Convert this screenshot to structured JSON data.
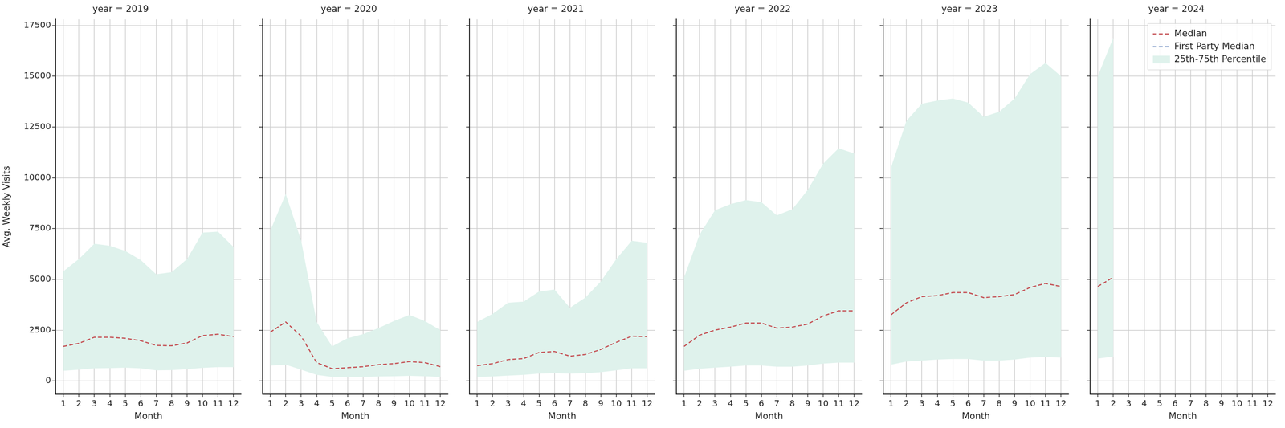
{
  "chart_data": [
    {
      "type": "line",
      "title": "year = 2019",
      "x_label": "Month",
      "y_label": "Avg. Weekly Visits",
      "x": [
        1,
        2,
        3,
        4,
        5,
        6,
        7,
        8,
        9,
        10,
        11,
        12
      ],
      "series": [
        {
          "name": "Median",
          "color": "#c44e52",
          "type": "line",
          "line_style": "dashed",
          "values": [
            1700,
            1850,
            2150,
            2150,
            2100,
            1980,
            1750,
            1730,
            1870,
            2230,
            2300,
            2180
          ]
        },
        {
          "name": "First Party Median",
          "color": "#4c72b0",
          "type": "line",
          "line_style": "dashed",
          "values": [
            null,
            null,
            null,
            null,
            null,
            null,
            null,
            null,
            null,
            null,
            null,
            null
          ]
        },
        {
          "name": "25th-75th Percentile",
          "color": "#dff2ec",
          "type": "area",
          "lower": [
            500,
            550,
            620,
            630,
            650,
            620,
            520,
            530,
            580,
            640,
            680,
            680
          ],
          "upper": [
            5400,
            6000,
            6750,
            6650,
            6400,
            5950,
            5250,
            5350,
            6000,
            7300,
            7350,
            6600
          ]
        }
      ],
      "xlim": [
        0.5,
        12.5
      ],
      "xticks": [
        1,
        2,
        3,
        4,
        5,
        6,
        7,
        8,
        9,
        10,
        11,
        12
      ],
      "ylim": [
        -650,
        17800
      ],
      "yticks": [
        0,
        2500,
        5000,
        7500,
        10000,
        12500,
        15000,
        17500
      ],
      "grid": true
    },
    {
      "type": "line",
      "title": "year = 2020",
      "x_label": "Month",
      "x": [
        1,
        2,
        3,
        4,
        5,
        6,
        7,
        8,
        9,
        10,
        11,
        12
      ],
      "series": [
        {
          "name": "Median",
          "color": "#c44e52",
          "type": "line",
          "line_style": "dashed",
          "values": [
            2400,
            2900,
            2200,
            900,
            600,
            650,
            700,
            800,
            850,
            950,
            900,
            700
          ]
        },
        {
          "name": "First Party Median",
          "color": "#4c72b0",
          "type": "line",
          "line_style": "dashed",
          "values": [
            null,
            null,
            null,
            null,
            null,
            null,
            null,
            null,
            null,
            null,
            null,
            null
          ]
        },
        {
          "name": "25th-75th Percentile",
          "color": "#dff2ec",
          "type": "area",
          "lower": [
            750,
            800,
            550,
            300,
            200,
            200,
            200,
            220,
            230,
            250,
            230,
            200
          ],
          "upper": [
            7400,
            9200,
            6900,
            2900,
            1700,
            2100,
            2300,
            2600,
            2950,
            3250,
            2950,
            2500
          ]
        }
      ],
      "xlim": [
        0.5,
        12.5
      ],
      "xticks": [
        1,
        2,
        3,
        4,
        5,
        6,
        7,
        8,
        9,
        10,
        11,
        12
      ],
      "ylim": [
        -650,
        17800
      ],
      "yticks": [
        0,
        2500,
        5000,
        7500,
        10000,
        12500,
        15000,
        17500
      ],
      "grid": true,
      "tick_labels": "x"
    },
    {
      "type": "line",
      "title": "year = 2021",
      "x_label": "Month",
      "x": [
        1,
        2,
        3,
        4,
        5,
        6,
        7,
        8,
        9,
        10,
        11,
        12
      ],
      "series": [
        {
          "name": "Median",
          "color": "#c44e52",
          "type": "line",
          "line_style": "dashed",
          "values": [
            750,
            850,
            1050,
            1100,
            1400,
            1450,
            1220,
            1300,
            1550,
            1900,
            2200,
            2180
          ]
        },
        {
          "name": "First Party Median",
          "color": "#4c72b0",
          "type": "line",
          "line_style": "dashed",
          "values": [
            null,
            null,
            null,
            null,
            null,
            null,
            null,
            null,
            null,
            null,
            null,
            null
          ]
        },
        {
          "name": "25th-75th Percentile",
          "color": "#dff2ec",
          "type": "area",
          "lower": [
            200,
            220,
            260,
            300,
            360,
            380,
            360,
            380,
            430,
            520,
            620,
            620
          ],
          "upper": [
            2900,
            3300,
            3850,
            3900,
            4400,
            4500,
            3600,
            4100,
            4900,
            6000,
            6900,
            6800
          ]
        }
      ],
      "xlim": [
        0.5,
        12.5
      ],
      "xticks": [
        1,
        2,
        3,
        4,
        5,
        6,
        7,
        8,
        9,
        10,
        11,
        12
      ],
      "ylim": [
        -650,
        17800
      ],
      "yticks": [
        0,
        2500,
        5000,
        7500,
        10000,
        12500,
        15000,
        17500
      ],
      "grid": true,
      "tick_labels": "x"
    },
    {
      "type": "line",
      "title": "year = 2022",
      "x_label": "Month",
      "x": [
        1,
        2,
        3,
        4,
        5,
        6,
        7,
        8,
        9,
        10,
        11,
        12
      ],
      "series": [
        {
          "name": "Median",
          "color": "#c44e52",
          "type": "line",
          "line_style": "dashed",
          "values": [
            1700,
            2250,
            2500,
            2650,
            2850,
            2850,
            2600,
            2650,
            2800,
            3200,
            3450,
            3450
          ]
        },
        {
          "name": "First Party Median",
          "color": "#4c72b0",
          "type": "line",
          "line_style": "dashed",
          "values": [
            null,
            null,
            null,
            null,
            null,
            null,
            null,
            null,
            null,
            null,
            null,
            null
          ]
        },
        {
          "name": "25th-75th Percentile",
          "color": "#dff2ec",
          "type": "area",
          "lower": [
            500,
            600,
            650,
            700,
            760,
            760,
            700,
            700,
            760,
            850,
            900,
            900
          ],
          "upper": [
            5100,
            7200,
            8400,
            8700,
            8900,
            8800,
            8150,
            8450,
            9400,
            10700,
            11450,
            11200
          ]
        }
      ],
      "xlim": [
        0.5,
        12.5
      ],
      "xticks": [
        1,
        2,
        3,
        4,
        5,
        6,
        7,
        8,
        9,
        10,
        11,
        12
      ],
      "ylim": [
        -650,
        17800
      ],
      "yticks": [
        0,
        2500,
        5000,
        7500,
        10000,
        12500,
        15000,
        17500
      ],
      "grid": true,
      "tick_labels": "x"
    },
    {
      "type": "line",
      "title": "year = 2023",
      "x_label": "Month",
      "x": [
        1,
        2,
        3,
        4,
        5,
        6,
        7,
        8,
        9,
        10,
        11,
        12
      ],
      "series": [
        {
          "name": "Median",
          "color": "#c44e52",
          "type": "line",
          "line_style": "dashed",
          "values": [
            3250,
            3850,
            4150,
            4200,
            4350,
            4350,
            4100,
            4150,
            4250,
            4600,
            4800,
            4650
          ]
        },
        {
          "name": "First Party Median",
          "color": "#4c72b0",
          "type": "line",
          "line_style": "dashed",
          "values": [
            null,
            null,
            null,
            null,
            null,
            null,
            null,
            null,
            null,
            null,
            null,
            null
          ]
        },
        {
          "name": "25th-75th Percentile",
          "color": "#dff2ec",
          "type": "area",
          "lower": [
            800,
            950,
            1000,
            1050,
            1080,
            1080,
            1000,
            1000,
            1050,
            1150,
            1180,
            1150
          ],
          "upper": [
            10500,
            12800,
            13650,
            13800,
            13900,
            13700,
            13000,
            13250,
            13900,
            15100,
            15650,
            15000
          ]
        }
      ],
      "xlim": [
        0.5,
        12.5
      ],
      "xticks": [
        1,
        2,
        3,
        4,
        5,
        6,
        7,
        8,
        9,
        10,
        11,
        12
      ],
      "ylim": [
        -650,
        17800
      ],
      "yticks": [
        0,
        2500,
        5000,
        7500,
        10000,
        12500,
        15000,
        17500
      ],
      "grid": true,
      "tick_labels": "x"
    },
    {
      "type": "line",
      "title": "year = 2024",
      "x_label": "Month",
      "x": [
        1,
        2
      ],
      "series": [
        {
          "name": "Median",
          "color": "#c44e52",
          "type": "line",
          "line_style": "dashed",
          "values": [
            4650,
            5100
          ]
        },
        {
          "name": "First Party Median",
          "color": "#4c72b0",
          "type": "line",
          "line_style": "dashed",
          "values": [
            null,
            null
          ]
        },
        {
          "name": "25th-75th Percentile",
          "color": "#dff2ec",
          "type": "area",
          "lower": [
            1100,
            1200
          ],
          "upper": [
            15000,
            16900
          ]
        }
      ],
      "xlim": [
        0.5,
        12.5
      ],
      "xticks": [
        1,
        2,
        3,
        4,
        5,
        6,
        7,
        8,
        9,
        10,
        11,
        12
      ],
      "ylim": [
        -650,
        17800
      ],
      "yticks": [
        0,
        2500,
        5000,
        7500,
        10000,
        12500,
        15000,
        17500
      ],
      "grid": true,
      "tick_labels": "x",
      "legend": "upper right"
    }
  ]
}
